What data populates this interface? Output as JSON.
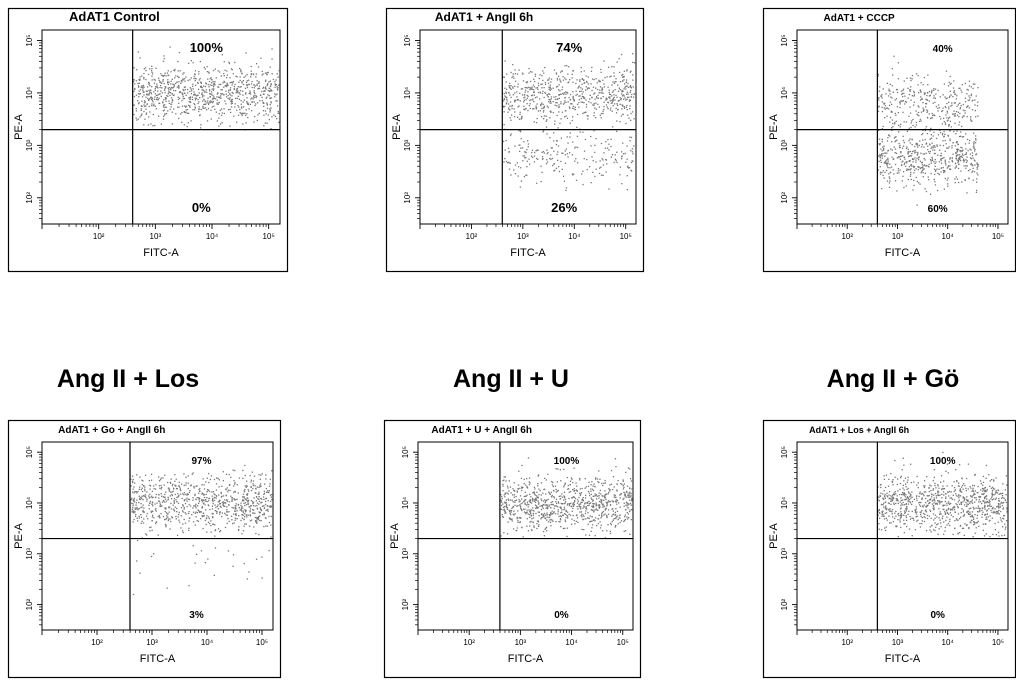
{
  "row_headings": [
    "Ang II + Los",
    "Ang II + U",
    "Ang II + Gö"
  ],
  "chart_data": [
    {
      "type": "scatter",
      "title": "AdAT1 Control",
      "xlabel": "FITC-A",
      "ylabel": "PE-A",
      "x_ticks": [
        "10²",
        "10³",
        "10⁴",
        "10⁵"
      ],
      "y_ticks": [
        "10²",
        "10³",
        "10⁴",
        "10⁵"
      ],
      "xlim": [
        1,
        5.2
      ],
      "ylim": [
        1.5,
        5.2
      ],
      "x_scale": "log",
      "y_scale": "log",
      "gate": {
        "x": 2.6,
        "y": 3.3
      },
      "quadrant_percentages": {
        "upper_right": "100%",
        "lower_right": "0%"
      },
      "population": {
        "x_range": [
          2.6,
          5.2
        ],
        "upper_fraction": 1.0,
        "upper_center": 4.0,
        "lower_center": 2.9
      }
    },
    {
      "type": "scatter",
      "title": "AdAT1 + AngII 6h",
      "xlabel": "FITC-A",
      "ylabel": "PE-A",
      "x_ticks": [
        "10²",
        "10³",
        "10⁴",
        "10⁵"
      ],
      "y_ticks": [
        "10²",
        "10³",
        "10⁴",
        "10⁵"
      ],
      "xlim": [
        1,
        5.2
      ],
      "ylim": [
        1.5,
        5.2
      ],
      "x_scale": "log",
      "y_scale": "log",
      "gate": {
        "x": 2.6,
        "y": 3.3
      },
      "quadrant_percentages": {
        "upper_right": "74%",
        "lower_right": "26%"
      },
      "population": {
        "x_range": [
          2.6,
          5.2
        ],
        "upper_fraction": 0.74,
        "upper_center": 4.0,
        "lower_center": 2.8
      }
    },
    {
      "type": "scatter",
      "title": "AdAT1 + CCCP",
      "xlabel": "FITC-A",
      "ylabel": "PE-A",
      "x_ticks": [
        "10²",
        "10³",
        "10⁴",
        "10⁵"
      ],
      "y_ticks": [
        "10²",
        "10³",
        "10⁴",
        "10⁵"
      ],
      "xlim": [
        1,
        5.2
      ],
      "ylim": [
        1.5,
        5.2
      ],
      "x_scale": "log",
      "y_scale": "log",
      "gate": {
        "x": 2.6,
        "y": 3.3
      },
      "quadrant_percentages": {
        "upper_right": "40%",
        "lower_right": "60%"
      },
      "population": {
        "x_range": [
          2.6,
          4.6
        ],
        "upper_fraction": 0.4,
        "upper_center": 3.8,
        "lower_center": 2.8
      }
    },
    {
      "type": "scatter",
      "title": "AdAT1 + Go + AngII 6h",
      "xlabel": "FITC-A",
      "ylabel": "PE-A",
      "x_ticks": [
        "10²",
        "10³",
        "10⁴",
        "10⁵"
      ],
      "y_ticks": [
        "10²",
        "10³",
        "10⁴",
        "10⁵"
      ],
      "xlim": [
        1,
        5.2
      ],
      "ylim": [
        1.5,
        5.2
      ],
      "x_scale": "log",
      "y_scale": "log",
      "gate": {
        "x": 2.6,
        "y": 3.3
      },
      "quadrant_percentages": {
        "upper_right": "97%",
        "lower_right": "3%"
      },
      "population": {
        "x_range": [
          2.6,
          5.2
        ],
        "upper_fraction": 0.97,
        "upper_center": 4.0,
        "lower_center": 2.9
      }
    },
    {
      "type": "scatter",
      "title": "AdAT1 + U + AngII 6h",
      "xlabel": "FITC-A",
      "ylabel": "PE-A",
      "x_ticks": [
        "10²",
        "10³",
        "10⁴",
        "10⁵"
      ],
      "y_ticks": [
        "10²",
        "10³",
        "10⁴",
        "10⁵"
      ],
      "xlim": [
        1,
        5.2
      ],
      "ylim": [
        1.5,
        5.2
      ],
      "x_scale": "log",
      "y_scale": "log",
      "gate": {
        "x": 2.6,
        "y": 3.3
      },
      "quadrant_percentages": {
        "upper_right": "100%",
        "lower_right": "0%"
      },
      "population": {
        "x_range": [
          2.6,
          5.2
        ],
        "upper_fraction": 1.0,
        "upper_center": 4.0,
        "lower_center": 2.9
      }
    },
    {
      "type": "scatter",
      "title": "AdAT1 + Los + AngII 6h",
      "xlabel": "FITC-A",
      "ylabel": "PE-A",
      "x_ticks": [
        "10²",
        "10³",
        "10⁴",
        "10⁵"
      ],
      "y_ticks": [
        "10²",
        "10³",
        "10⁴",
        "10⁵"
      ],
      "xlim": [
        1,
        5.2
      ],
      "ylim": [
        1.5,
        5.2
      ],
      "x_scale": "log",
      "y_scale": "log",
      "gate": {
        "x": 2.6,
        "y": 3.3
      },
      "quadrant_percentages": {
        "upper_right": "100%",
        "lower_right": "0%"
      },
      "population": {
        "x_range": [
          2.6,
          5.2
        ],
        "upper_fraction": 1.0,
        "upper_center": 4.0,
        "lower_center": 2.9
      }
    }
  ],
  "colors": {
    "dots": "#777777",
    "frame": "#000000",
    "gate": "#000000"
  }
}
